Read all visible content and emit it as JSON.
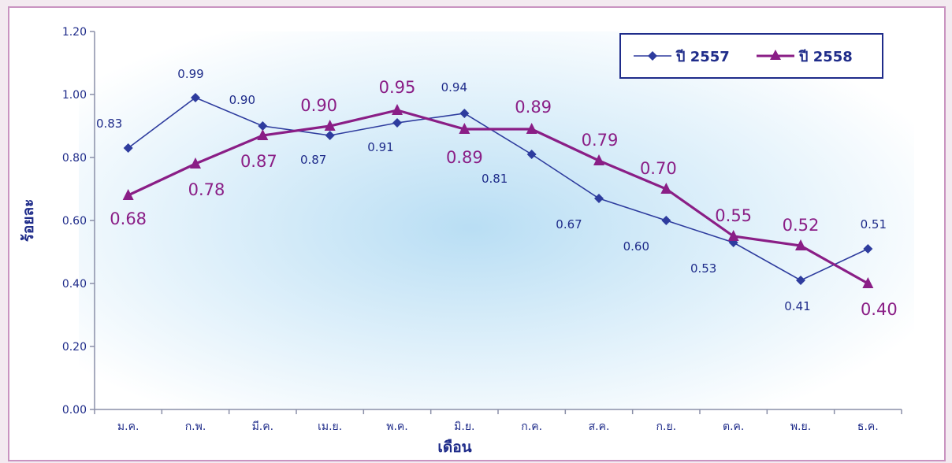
{
  "chart_data": {
    "type": "line",
    "xlabel": "เดือน",
    "ylabel": "ร้อยละ",
    "categories": [
      "ม.ค.",
      "ก.พ.",
      "มี.ค.",
      "เม.ย.",
      "พ.ค.",
      "มิ.ย.",
      "ก.ค.",
      "ส.ค.",
      "ก.ย.",
      "ต.ค.",
      "พ.ย.",
      "ธ.ค."
    ],
    "ylim": [
      0,
      1.2
    ],
    "yticks": [
      "0.00",
      "0.20",
      "0.40",
      "0.60",
      "0.80",
      "1.00",
      "1.20"
    ],
    "grid": false,
    "legend_position": "top-right",
    "series": [
      {
        "name": "ปี 2557",
        "color": "#2e3c9e",
        "marker": "diamond",
        "values": [
          0.83,
          0.99,
          0.9,
          0.87,
          0.91,
          0.94,
          0.81,
          0.67,
          0.6,
          0.53,
          0.41,
          0.51
        ],
        "labels": [
          "0.83",
          "0.99",
          "0.90",
          "0.87",
          "0.91",
          "0.94",
          "0.81",
          "0.67",
          "0.60",
          "0.53",
          "0.41",
          "0.51"
        ]
      },
      {
        "name": "ปี 2558",
        "color": "#8a1e86",
        "marker": "triangle",
        "values": [
          0.68,
          0.78,
          0.87,
          0.9,
          0.95,
          0.89,
          0.89,
          0.79,
          0.7,
          0.55,
          0.52,
          0.4
        ],
        "labels": [
          "0.68",
          "0.78",
          "0.87",
          "0.90",
          "0.95",
          "0.89",
          "0.89",
          "0.79",
          "0.70",
          "0.55",
          "0.52",
          "0.40"
        ]
      }
    ]
  }
}
